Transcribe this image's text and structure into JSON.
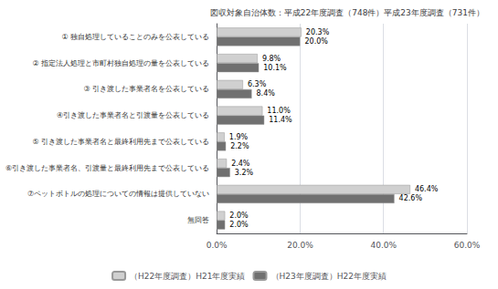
{
  "chart_data": {
    "type": "bar",
    "orientation": "horizontal",
    "title": "図収対象自治体数：平成22年度調査（748件）平成23年度調査（731件）",
    "categories": [
      "① 独自処理していることのみを公表している",
      "② 指定法人処理と市町村独自処理の量を公表している",
      "③ 引き渡した事業者名を公表している",
      "④引き渡した事業者名と引渡量を公表している",
      "⑤ 引き渡した事業者名と最終利用先まで公表している",
      "⑥引き渡した事業者名、引渡量と最終利用先まで公表している",
      "⑦ペットボトルの処理についての情報は提供していない",
      "　無回答"
    ],
    "series": [
      {
        "name": "（H22年度調査）H21年度実績",
        "color": "#d0d0d0",
        "values": [
          20.3,
          9.8,
          6.3,
          11.0,
          1.9,
          2.4,
          46.4,
          2.0
        ],
        "value_labels": [
          "20.3%",
          "9.8%",
          "6.3%",
          "11.0%",
          "1.9%",
          "2.4%",
          "46.4%",
          "2.0%"
        ]
      },
      {
        "name": "（H23年度調査）H22年度実績",
        "color": "#707070",
        "values": [
          20.0,
          10.1,
          8.4,
          11.4,
          2.2,
          3.2,
          42.6,
          2.0
        ],
        "value_labels": [
          "20.0%",
          "10.1%",
          "8.4%",
          "11.4%",
          "2.2%",
          "3.2%",
          "42.6%",
          "2.0%"
        ]
      }
    ],
    "xlim": [
      0,
      60
    ],
    "xticks": [
      {
        "value": 0,
        "label": "0.0%"
      },
      {
        "value": 20,
        "label": "20.0%"
      },
      {
        "value": 40,
        "label": "40.0%"
      },
      {
        "value": 60,
        "label": "60.0%"
      }
    ],
    "grid": true,
    "legend": "bottom",
    "data_labels": true
  }
}
